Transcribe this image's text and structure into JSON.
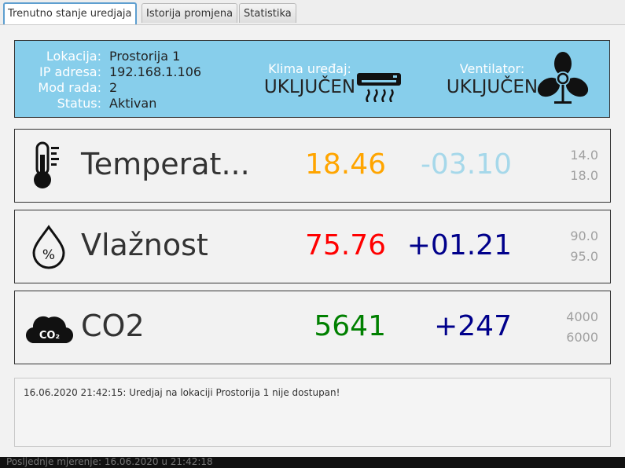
{
  "tabs": [
    {
      "label": "Trenutno stanje uredjaja",
      "active": true
    },
    {
      "label": "Istorija promjena",
      "active": false
    },
    {
      "label": "Statistika",
      "active": false
    }
  ],
  "info": {
    "location_label": "Lokacija:",
    "location_value": "Prostorija 1",
    "ip_label": "IP adresa:",
    "ip_value": "192.168.1.106",
    "mode_label": "Mod rada:",
    "mode_value": "2",
    "status_label": "Status:",
    "status_value": "Aktivan",
    "ac_label": "Klima uređaj:",
    "ac_value": "UKLJUČEN",
    "fan_label": "Ventilator:",
    "fan_value": "UKLJUČEN",
    "background_color": "#87ceeb"
  },
  "measurements": [
    {
      "name": "Temperat...",
      "icon": "thermometer-icon",
      "value": "18.46",
      "value_color": "#ffa500",
      "delta": "-03.10",
      "delta_color": "#a6d8ea",
      "limit_low": "14.0",
      "limit_high": "18.0"
    },
    {
      "name": "Vlažnost",
      "icon": "humidity-drop-icon",
      "value": "75.76",
      "value_color": "#ff0000",
      "delta": "+01.21",
      "delta_color": "#00008b",
      "limit_low": "90.0",
      "limit_high": "95.0"
    },
    {
      "name": "CO2",
      "icon": "co2-cloud-icon",
      "value": "5641",
      "value_color": "#008000",
      "delta": "+247",
      "delta_color": "#00008b",
      "limit_low": "4000",
      "limit_high": "6000"
    }
  ],
  "log": {
    "messages": [
      "16.06.2020 21:42:15: Uredjaj na lokaciji Prostorija 1 nije dostupan!"
    ]
  },
  "statusbar": {
    "text": "Posljednje mjerenje: 16.06.2020 u 21:42:18"
  }
}
